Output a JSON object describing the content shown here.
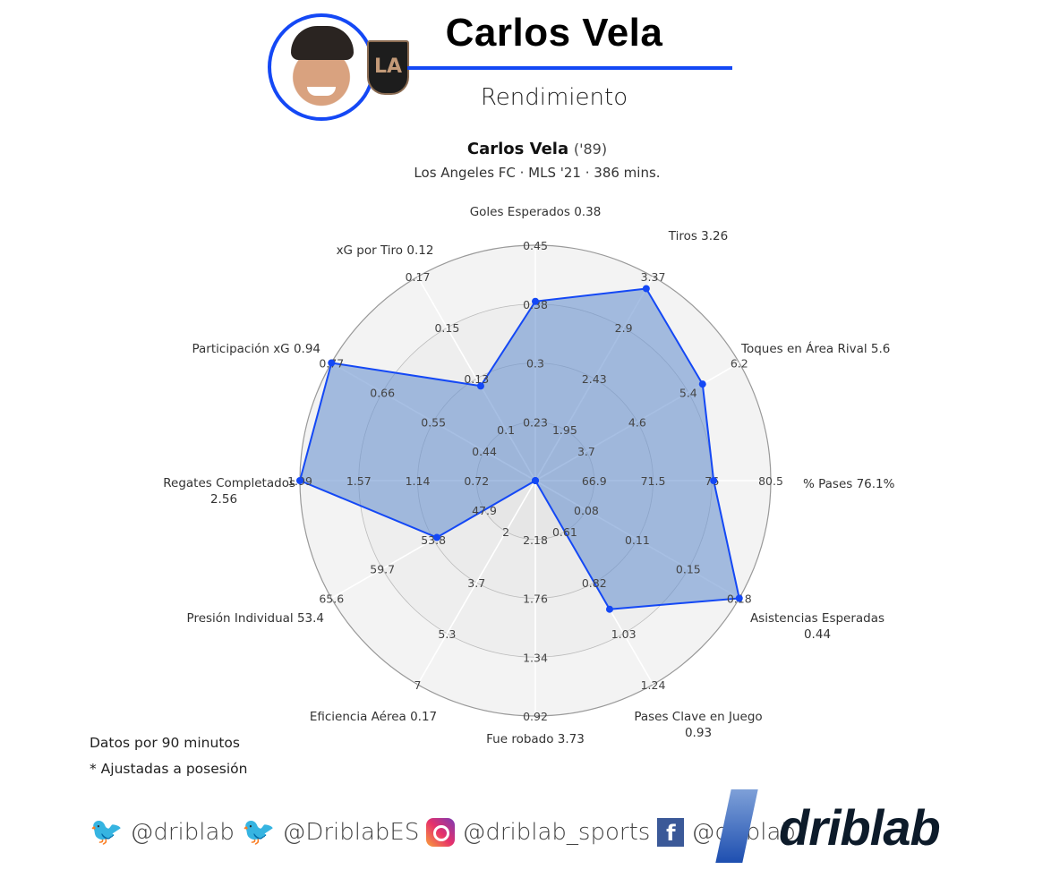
{
  "header": {
    "title": "Carlos Vela",
    "subtitle": "Rendimiento",
    "crest_text": "LA",
    "accent": "#1448f5"
  },
  "chart_data": {
    "type": "radar",
    "title": {
      "player": "Carlos Vela",
      "year": "('89)"
    },
    "subtitle": "Los Angeles FC · MLS '21 · 386 mins.",
    "fill_color": "#6c95d0",
    "line_color": "#1448f5",
    "axes": [
      {
        "label": "Goles Esperados 0.38",
        "value": 0.38,
        "ticks": [
          "0.23",
          "0.3",
          "0.38",
          "0.45"
        ]
      },
      {
        "label": "Tiros 3.26",
        "value": 3.26,
        "ticks": [
          "1.95",
          "2.43",
          "2.9",
          "3.37"
        ]
      },
      {
        "label": "Toques en Área Rival 5.6",
        "value": 5.6,
        "ticks": [
          "3.7",
          "4.6",
          "5.4",
          "6.2"
        ]
      },
      {
        "label": "% Pases 76.1%",
        "value": 76.1,
        "ticks": [
          "66.9",
          "71.5",
          "76",
          "80.5"
        ]
      },
      {
        "label": "Asistencias Esperadas",
        "label2": "0.44",
        "value": 0.44,
        "ticks": [
          "0.08",
          "0.11",
          "0.15",
          "0.18"
        ]
      },
      {
        "label": "Pases Clave en Juego",
        "label2": "0.93",
        "value": 0.93,
        "ticks": [
          "0.61",
          "0.82",
          "1.03",
          "1.24"
        ]
      },
      {
        "label": "Fue robado 3.73",
        "value": 3.73,
        "ticks": [
          "2.18",
          "1.76",
          "1.34",
          "0.92"
        ]
      },
      {
        "label": "Eficiencia Aérea 0.17",
        "value": 0.17,
        "ticks": [
          "2",
          "3.7",
          "5.3",
          "7"
        ]
      },
      {
        "label": "Presión Individual 53.4",
        "value": 53.4,
        "ticks": [
          "47.9",
          "53.8",
          "59.7",
          "65.6"
        ]
      },
      {
        "label": "Regates Completados",
        "label2": "2.56",
        "value": 2.56,
        "ticks": [
          "0.72",
          "1.14",
          "1.57",
          "1.99"
        ]
      },
      {
        "label": "Participación xG 0.94",
        "value": 0.94,
        "ticks": [
          "0.44",
          "0.55",
          "0.66",
          "0.77"
        ]
      },
      {
        "label": "xG por Tiro 0.12",
        "value": 0.12,
        "ticks": [
          "0.1",
          "0.13",
          "0.15",
          "0.17"
        ]
      }
    ]
  },
  "notes": [
    "Datos por 90 minutos",
    "* Ajustadas a posesión"
  ],
  "footer": {
    "handles": [
      "@driblab",
      "@DriblabES",
      "@driblab_sports",
      "@driblab"
    ],
    "brand": "driblab"
  }
}
